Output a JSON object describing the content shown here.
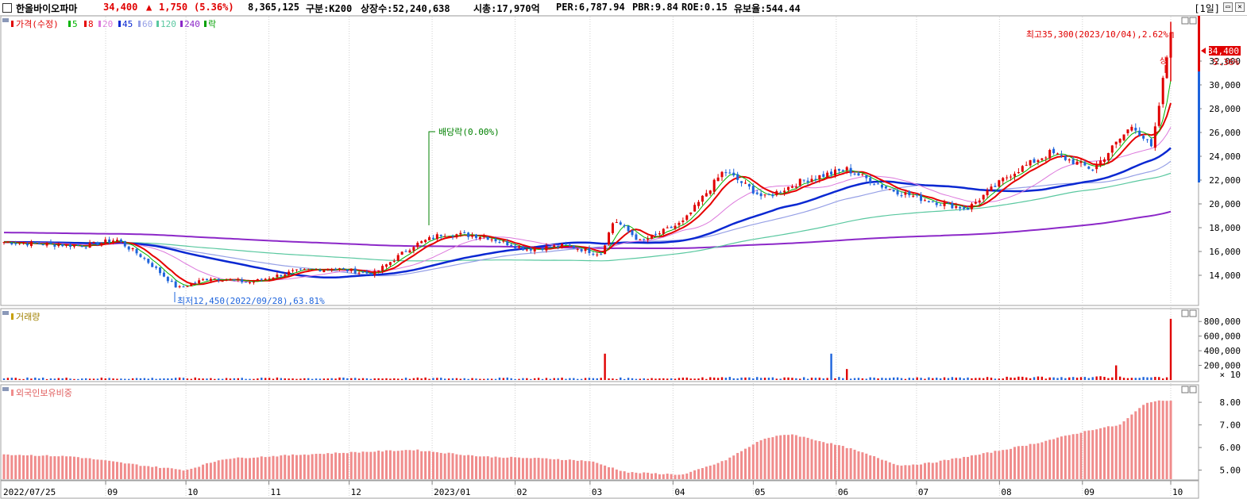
{
  "header": {
    "stock_name": "한올바이오파마",
    "price": "34,400",
    "change_arrow": "▲",
    "change": "1,750",
    "change_pct": "(5.36%)",
    "volume": "8,365,125",
    "index": "구분:K200",
    "shares": "상장수:52,240,638",
    "market_cap": "시총:17,970억",
    "per": "PER:6,787.94",
    "pbr": "PBR:9.84",
    "roe": "ROE:0.15",
    "retention": "유보율:544.44",
    "period": "[1일]",
    "restore_btn": "▭",
    "close_btn": "✕"
  },
  "price_legend": {
    "price_label": "가격(수정)",
    "ma": [
      "5",
      "8",
      "20",
      "45",
      "60",
      "120",
      "240"
    ],
    "drop_label": "락"
  },
  "annotations": {
    "high": "최고35,300(2023/10/04),2.62%",
    "low": "최저12,450(2022/09/28),63.81%",
    "dividend": "배당락(0.00%)",
    "up_marker": "상"
  },
  "price_tag": {
    "value": "34,400",
    "pct": "5.36%"
  },
  "volume_panel": {
    "title": "거래량",
    "unit": "× 10"
  },
  "foreign_panel": {
    "title": "외국인보유비중"
  },
  "colors": {
    "up": "#e00000",
    "down": "#1e64dc",
    "ma5": "#00b400",
    "ma8": "#e60000",
    "ma20": "#dc78dc",
    "ma45": "#0a28d2",
    "ma60": "#96a0e6",
    "ma120": "#5ac8a0",
    "ma240": "#8c28c8",
    "foreign": "#f08c8c"
  },
  "chart_data": [
    {
      "type": "candlestick",
      "title": "한올바이오파마",
      "x_tick_labels": [
        "2022/07/25",
        "09",
        "10",
        "11",
        "12",
        "2023/01",
        "02",
        "03",
        "04",
        "05",
        "06",
        "07",
        "08",
        "09",
        "10"
      ],
      "y_ticks": [
        14000,
        16000,
        18000,
        20000,
        22000,
        24000,
        26000,
        28000,
        30000,
        32000
      ],
      "y_tick_labels": [
        "14,000",
        "16,000",
        "18,000",
        "20,000",
        "22,000",
        "24,000",
        "26,000",
        "28,000",
        "30,000",
        "32,000"
      ],
      "ylim": [
        11600,
        35600
      ],
      "close_series": {
        "name": "가격(수정)",
        "key_points": [
          [
            "2022/07/25",
            16800
          ],
          [
            "2022/08/10",
            16600
          ],
          [
            "2022/08/25",
            16500
          ],
          [
            "2022/09/05",
            17000
          ],
          [
            "2022/09/15",
            15500
          ],
          [
            "2022/09/28",
            12900
          ],
          [
            "2022/10/10",
            13800
          ],
          [
            "2022/10/25",
            13400
          ],
          [
            "2022/11/10",
            14300
          ],
          [
            "2022/11/25",
            14600
          ],
          [
            "2022/12/10",
            14100
          ],
          [
            "2022/12/25",
            16500
          ],
          [
            "2023/01/05",
            17500
          ],
          [
            "2023/01/20",
            17300
          ],
          [
            "2023/02/05",
            16200
          ],
          [
            "2023/02/20",
            16500
          ],
          [
            "2023/03/05",
            15800
          ],
          [
            "2023/03/10",
            18700
          ],
          [
            "2023/03/20",
            16800
          ],
          [
            "2023/04/05",
            18500
          ],
          [
            "2023/04/20",
            22800
          ],
          [
            "2023/05/05",
            20500
          ],
          [
            "2023/05/20",
            22000
          ],
          [
            "2023/06/05",
            22900
          ],
          [
            "2023/06/20",
            21300
          ],
          [
            "2023/07/05",
            20300
          ],
          [
            "2023/07/20",
            19600
          ],
          [
            "2023/08/05",
            22500
          ],
          [
            "2023/08/20",
            24300
          ],
          [
            "2023/09/05",
            22900
          ],
          [
            "2023/09/20",
            26700
          ],
          [
            "2023/09/27",
            24600
          ],
          [
            "2023/10/04",
            34400
          ]
        ]
      },
      "moving_averages": [
        {
          "name": "5"
        },
        {
          "name": "8"
        },
        {
          "name": "20"
        },
        {
          "name": "45"
        },
        {
          "name": "60"
        },
        {
          "name": "120"
        },
        {
          "name": "240"
        }
      ],
      "annotations": [
        {
          "text": "최고35,300(2023/10/04),2.62%",
          "date": "2023/10/04",
          "value": 35300
        },
        {
          "text": "최저12,450(2022/09/28),63.81%",
          "date": "2022/09/28",
          "value": 12450
        },
        {
          "text": "배당락(0.00%)",
          "date": "2022/12/28"
        }
      ],
      "last": {
        "value": 34400,
        "change_pct": 5.36
      }
    },
    {
      "type": "bar",
      "title": "거래량",
      "y_ticks": [
        200000,
        400000,
        600000,
        800000
      ],
      "y_tick_labels": [
        "200,000",
        "400,000",
        "600,000",
        "800,000"
      ],
      "unit_label": "× 10",
      "ylim": [
        0,
        900000
      ],
      "notable_values": [
        {
          "date": "2023/03/06",
          "value": 300000
        },
        {
          "date": "2023/03/07",
          "value": 360000
        },
        {
          "date": "2023/05/30",
          "value": 360000
        },
        {
          "date": "2023/06/05",
          "value": 150000
        },
        {
          "date": "2023/09/14",
          "value": 200000
        },
        {
          "date": "2023/10/04",
          "value": 836513
        }
      ]
    },
    {
      "type": "bar",
      "title": "외국인보유비중",
      "y_ticks": [
        5.0,
        6.0,
        7.0,
        8.0
      ],
      "y_tick_labels": [
        "5.00",
        "6.00",
        "7.00",
        "8.00"
      ],
      "ylim": [
        4.6,
        8.6
      ],
      "key_points": [
        [
          "2022/07/25",
          5.7
        ],
        [
          "2022/08/20",
          5.6
        ],
        [
          "2022/09/15",
          5.2
        ],
        [
          "2022/10/01",
          5.0
        ],
        [
          "2022/10/15",
          5.5
        ],
        [
          "2022/11/15",
          5.7
        ],
        [
          "2022/12/05",
          5.8
        ],
        [
          "2022/12/25",
          5.9
        ],
        [
          "2023/01/20",
          5.6
        ],
        [
          "2023/02/15",
          5.5
        ],
        [
          "2023/03/01",
          5.4
        ],
        [
          "2023/03/15",
          4.9
        ],
        [
          "2023/04/05",
          4.8
        ],
        [
          "2023/04/20",
          5.4
        ],
        [
          "2023/05/05",
          6.4
        ],
        [
          "2023/05/15",
          6.6
        ],
        [
          "2023/06/05",
          6.0
        ],
        [
          "2023/06/25",
          5.2
        ],
        [
          "2023/07/05",
          5.3
        ],
        [
          "2023/07/25",
          5.7
        ],
        [
          "2023/08/15",
          6.2
        ],
        [
          "2023/09/05",
          6.8
        ],
        [
          "2023/09/15",
          7.0
        ],
        [
          "2023/09/25",
          8.0
        ],
        [
          "2023/10/04",
          8.1
        ]
      ]
    }
  ]
}
